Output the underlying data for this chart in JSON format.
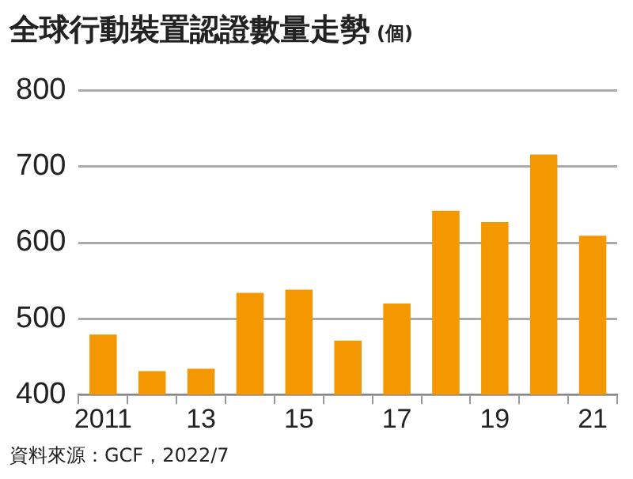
{
  "chart_data": {
    "type": "bar",
    "title": "全球行動裝置認證數量走勢",
    "ylabel": "(個)",
    "categories": [
      "2011",
      null,
      "13",
      null,
      "15",
      null,
      "17",
      null,
      "19",
      null,
      "21"
    ],
    "values": [
      479,
      431,
      434,
      534,
      538,
      471,
      520,
      642,
      627,
      716,
      609
    ],
    "color": "#f39800",
    "ylim": [
      400,
      800
    ],
    "yticks": [
      400,
      500,
      600,
      700,
      800
    ],
    "grid": "y",
    "annotations": [
      "資料來源：GCF，2022/7"
    ]
  }
}
